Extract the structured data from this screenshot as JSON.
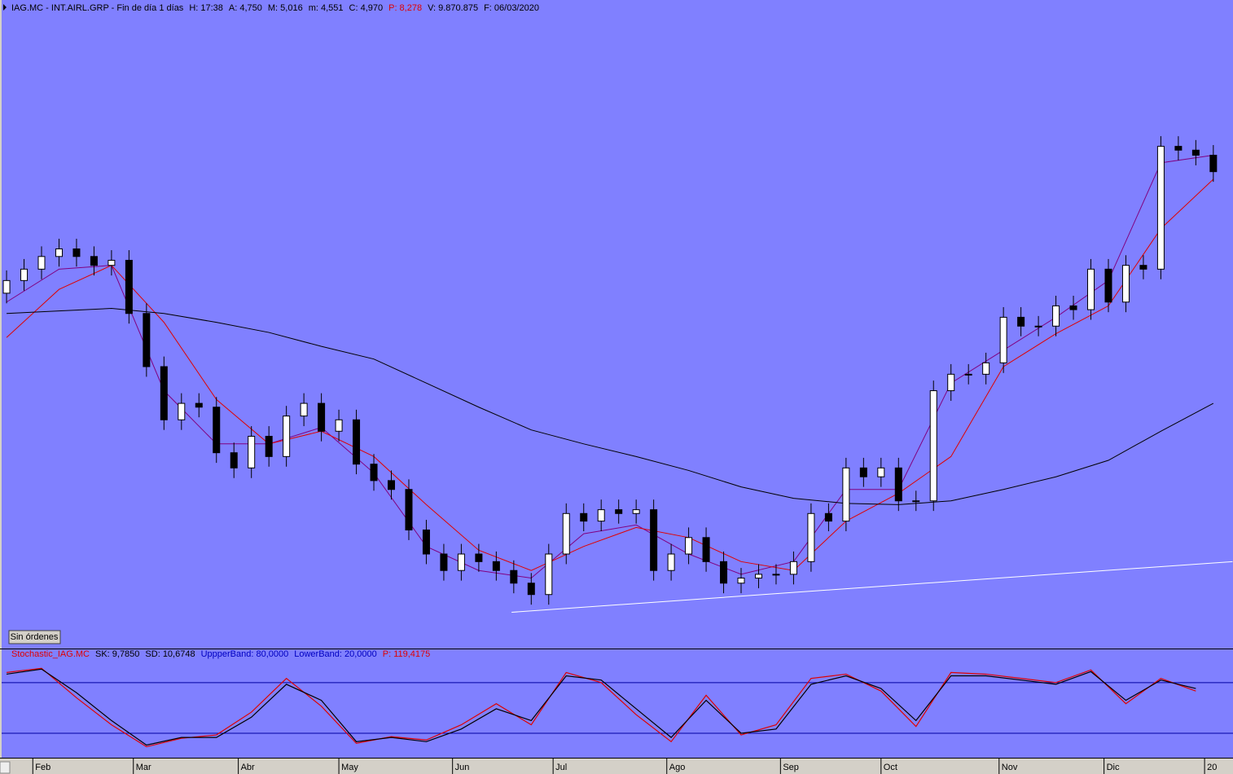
{
  "chart_data": [
    {
      "type": "candlestick",
      "title": "IAG.MC - INT.AIRL.GRP - Fin de día 1 días",
      "info": [
        {
          "text": "H: 17:38",
          "color": "#000000"
        },
        {
          "text": "A: 4,750",
          "color": "#000000"
        },
        {
          "text": "M: 5,016",
          "color": "#000000"
        },
        {
          "text": "m: 4,551",
          "color": "#000000"
        },
        {
          "text": "C: 4,970",
          "color": "#000000"
        },
        {
          "text": "P: 8,278",
          "color": "#e00000"
        },
        {
          "text": "V: 9.870.875",
          "color": "#000000"
        },
        {
          "text": "F: 06/03/2020",
          "color": "#000000"
        }
      ],
      "background": "#8080ff",
      "up_color": "#ffffff",
      "down_color": "#000000",
      "xlim": [
        -1.5,
        280.5
      ],
      "ylim": [
        2.0,
        7.0
      ],
      "x": [
        0,
        4,
        8,
        12,
        16,
        20,
        24,
        28,
        32,
        36,
        40,
        44,
        48,
        52,
        56,
        60,
        64,
        68,
        72,
        76,
        80,
        84,
        88,
        92,
        96,
        100,
        104,
        108,
        112,
        116,
        120,
        124,
        128,
        132,
        136,
        140,
        144,
        148,
        152,
        156,
        160,
        164,
        168,
        172,
        176,
        180,
        184,
        188,
        192,
        196,
        200,
        204,
        208,
        212,
        216,
        220,
        224,
        228,
        232,
        236,
        240,
        244,
        248,
        252,
        256,
        260,
        264,
        268,
        272,
        276
      ],
      "open": [
        4.8,
        4.9,
        4.99,
        5.09,
        5.15,
        5.09,
        5.02,
        5.06,
        4.64,
        4.22,
        3.8,
        3.93,
        3.9,
        3.54,
        3.42,
        3.67,
        3.51,
        3.83,
        3.93,
        3.71,
        3.8,
        3.45,
        3.32,
        3.25,
        2.93,
        2.74,
        2.61,
        2.74,
        2.68,
        2.61,
        2.51,
        2.42,
        2.74,
        3.06,
        3.0,
        3.09,
        3.06,
        3.09,
        2.61,
        2.74,
        2.87,
        2.68,
        2.51,
        2.55,
        2.58,
        2.58,
        2.68,
        3.06,
        3.0,
        3.42,
        3.35,
        3.42,
        3.16,
        3.16,
        4.03,
        4.16,
        4.16,
        4.25,
        4.61,
        4.54,
        4.54,
        4.7,
        4.67,
        4.99,
        4.73,
        5.02,
        4.99,
        5.96,
        5.93,
        5.89
      ],
      "high": [
        4.98,
        5.07,
        5.17,
        5.23,
        5.23,
        5.17,
        5.14,
        5.14,
        4.72,
        4.3,
        4.01,
        4.01,
        3.98,
        3.62,
        3.75,
        3.75,
        3.91,
        4.01,
        4.01,
        3.88,
        3.88,
        3.53,
        3.4,
        3.33,
        3.01,
        2.82,
        2.82,
        2.82,
        2.76,
        2.69,
        2.59,
        2.82,
        3.14,
        3.14,
        3.17,
        3.17,
        3.17,
        3.17,
        2.82,
        2.95,
        2.95,
        2.76,
        2.63,
        2.66,
        2.66,
        2.76,
        3.14,
        3.14,
        3.5,
        3.5,
        3.5,
        3.5,
        3.24,
        4.11,
        4.24,
        4.24,
        4.33,
        4.69,
        4.69,
        4.62,
        4.78,
        4.78,
        5.07,
        5.07,
        5.1,
        5.1,
        6.04,
        6.04,
        6.01,
        5.97
      ],
      "low": [
        4.72,
        4.82,
        4.91,
        5.01,
        5.01,
        4.94,
        4.94,
        4.56,
        4.14,
        3.72,
        3.72,
        3.82,
        3.46,
        3.34,
        3.34,
        3.43,
        3.43,
        3.75,
        3.63,
        3.63,
        3.37,
        3.24,
        3.17,
        2.85,
        2.66,
        2.53,
        2.53,
        2.6,
        2.53,
        2.43,
        2.34,
        2.34,
        2.66,
        2.92,
        2.92,
        2.98,
        2.98,
        2.53,
        2.53,
        2.66,
        2.6,
        2.43,
        2.43,
        2.47,
        2.5,
        2.5,
        2.6,
        2.92,
        2.92,
        3.27,
        3.27,
        3.08,
        3.08,
        3.08,
        3.95,
        4.08,
        4.08,
        4.17,
        4.46,
        4.46,
        4.46,
        4.59,
        4.59,
        4.65,
        4.65,
        4.91,
        4.91,
        5.85,
        5.81,
        5.68
      ],
      "close": [
        4.9,
        4.99,
        5.09,
        5.15,
        5.09,
        5.02,
        5.06,
        4.64,
        4.22,
        3.8,
        3.93,
        3.9,
        3.54,
        3.42,
        3.67,
        3.51,
        3.83,
        3.93,
        3.71,
        3.8,
        3.45,
        3.32,
        3.25,
        2.93,
        2.74,
        2.61,
        2.74,
        2.68,
        2.61,
        2.51,
        2.42,
        2.74,
        3.06,
        3.0,
        3.09,
        3.06,
        3.09,
        2.61,
        2.74,
        2.87,
        2.68,
        2.51,
        2.55,
        2.58,
        2.58,
        2.68,
        3.06,
        3.0,
        3.42,
        3.35,
        3.42,
        3.16,
        3.16,
        4.03,
        4.16,
        4.16,
        4.25,
        4.61,
        4.54,
        4.54,
        4.7,
        4.67,
        4.99,
        4.73,
        5.02,
        4.99,
        5.96,
        5.93,
        5.89,
        5.76
      ],
      "lines": [
        {
          "color": "#800080",
          "x": [
            0,
            12,
            24,
            36,
            48,
            60,
            72,
            84,
            96,
            108,
            120,
            132,
            144,
            156,
            168,
            180,
            192,
            204,
            216,
            228,
            240,
            252,
            264,
            276
          ],
          "values": [
            4.73,
            4.99,
            5.02,
            4.03,
            3.61,
            3.61,
            3.74,
            3.38,
            2.8,
            2.61,
            2.55,
            2.9,
            2.97,
            2.74,
            2.58,
            2.68,
            3.25,
            3.25,
            4.09,
            4.35,
            4.61,
            4.9,
            5.83,
            5.89
          ]
        },
        {
          "color": "#e00000",
          "x": [
            0,
            12,
            24,
            36,
            48,
            60,
            72,
            84,
            96,
            108,
            120,
            132,
            144,
            156,
            168,
            180,
            192,
            204,
            216,
            228,
            240,
            252,
            264,
            276
          ],
          "values": [
            4.45,
            4.83,
            5.02,
            4.57,
            3.96,
            3.61,
            3.71,
            3.51,
            3.13,
            2.77,
            2.61,
            2.8,
            2.95,
            2.87,
            2.68,
            2.61,
            3.0,
            3.22,
            3.51,
            4.22,
            4.48,
            4.7,
            5.31,
            5.7
          ]
        },
        {
          "color": "#000000",
          "x": [
            0,
            12,
            24,
            36,
            48,
            60,
            72,
            84,
            96,
            108,
            120,
            132,
            144,
            156,
            168,
            180,
            192,
            204,
            216,
            228,
            240,
            252,
            264,
            276
          ],
          "values": [
            4.64,
            4.66,
            4.68,
            4.64,
            4.57,
            4.49,
            4.38,
            4.28,
            4.09,
            3.9,
            3.72,
            3.61,
            3.51,
            3.4,
            3.27,
            3.18,
            3.14,
            3.13,
            3.16,
            3.25,
            3.35,
            3.48,
            3.71,
            3.93
          ]
        },
        {
          "color": "#ffffff",
          "x": [
            115.5,
            280.4
          ],
          "values": [
            2.28,
            2.68
          ]
        }
      ]
    },
    {
      "type": "line",
      "title": "Stochastic_IAG.MC",
      "title_color": "#e00000",
      "info": [
        {
          "text": "SK: 9,7850",
          "color": "#000000"
        },
        {
          "text": "SD: 10,6748",
          "color": "#000000"
        },
        {
          "text": "UppperBand: 80,0000",
          "color": "#0000c0"
        },
        {
          "text": "LowerBand: 20,0000",
          "color": "#0000c0"
        },
        {
          "text": "P: 119,4175",
          "color": "#e00000"
        }
      ],
      "background": "#8080ff",
      "xlim": [
        -1.5,
        280.5
      ],
      "ylim": [
        -9,
        103
      ],
      "bands": [
        80,
        20
      ],
      "band_color": "#0000a0",
      "x": [
        0,
        8,
        16,
        24,
        32,
        40,
        48,
        56,
        64,
        72,
        80,
        88,
        96,
        104,
        112,
        120,
        128,
        136,
        144,
        152,
        160,
        168,
        176,
        184,
        192,
        200,
        208,
        216,
        224,
        232,
        240,
        248,
        256,
        264,
        272
      ],
      "series": [
        {
          "color": "#e00000",
          "values": [
            92,
            97,
            62,
            30,
            4,
            14,
            18,
            45,
            85,
            52,
            8,
            16,
            12,
            30,
            55,
            30,
            92,
            80,
            42,
            10,
            65,
            18,
            30,
            85,
            90,
            70,
            28,
            92,
            90,
            85,
            80,
            95,
            55,
            85,
            70
          ]
        },
        {
          "color": "#000000",
          "values": [
            90,
            96,
            68,
            35,
            6,
            15,
            15,
            39,
            78,
            59,
            10,
            15,
            10,
            25,
            49,
            35,
            88,
            83,
            49,
            15,
            59,
            20,
            25,
            78,
            88,
            73,
            35,
            88,
            88,
            83,
            78,
            93,
            59,
            83,
            73
          ]
        }
      ],
      "xticks": [
        {
          "value": 6,
          "label": "Feb"
        },
        {
          "value": 29,
          "label": "Mar"
        },
        {
          "value": 53,
          "label": "Abr"
        },
        {
          "value": 76,
          "label": "May"
        },
        {
          "value": 102,
          "label": "Jun"
        },
        {
          "value": 125,
          "label": "Jul"
        },
        {
          "value": 151,
          "label": "Ago"
        },
        {
          "value": 177,
          "label": "Sep"
        },
        {
          "value": 200,
          "label": "Oct"
        },
        {
          "value": 227,
          "label": "Nov"
        },
        {
          "value": 251,
          "label": "Dic"
        },
        {
          "value": 274,
          "label": "20"
        }
      ]
    }
  ],
  "button": "Sin órdenes"
}
